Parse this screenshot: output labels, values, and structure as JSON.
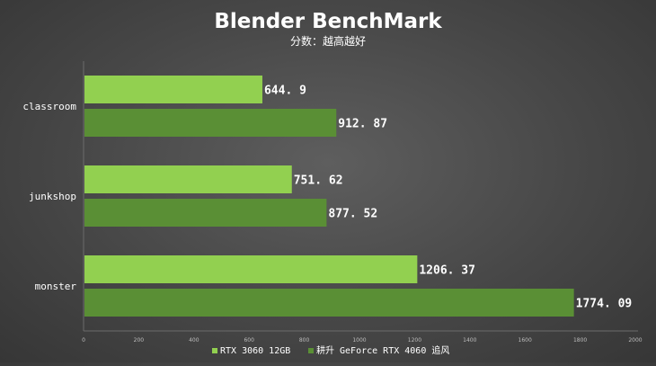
{
  "chart_data": {
    "type": "bar",
    "orientation": "horizontal",
    "title": "Blender BenchMark",
    "subtitle": "分数：越高越好",
    "categories": [
      "classroom",
      "junkshop",
      "monster"
    ],
    "series": [
      {
        "name": "RTX 3060 12GB",
        "color": "#92d050",
        "values": [
          644.9,
          751.62,
          1206.37
        ],
        "labels": [
          "644. 9",
          "751. 62",
          "1206. 37"
        ]
      },
      {
        "name": "耕升 GeForce RTX 4060 追风",
        "color": "#5a8f35",
        "values": [
          912.87,
          877.52,
          1774.09
        ],
        "labels": [
          "912. 87",
          "877. 52",
          "1774. 09"
        ]
      }
    ],
    "xlim": [
      0,
      2000
    ],
    "xticks": [
      0,
      200,
      400,
      600,
      800,
      1000,
      1200,
      1400,
      1600,
      1800,
      2000
    ],
    "grid": false,
    "legend_position": "bottom"
  }
}
